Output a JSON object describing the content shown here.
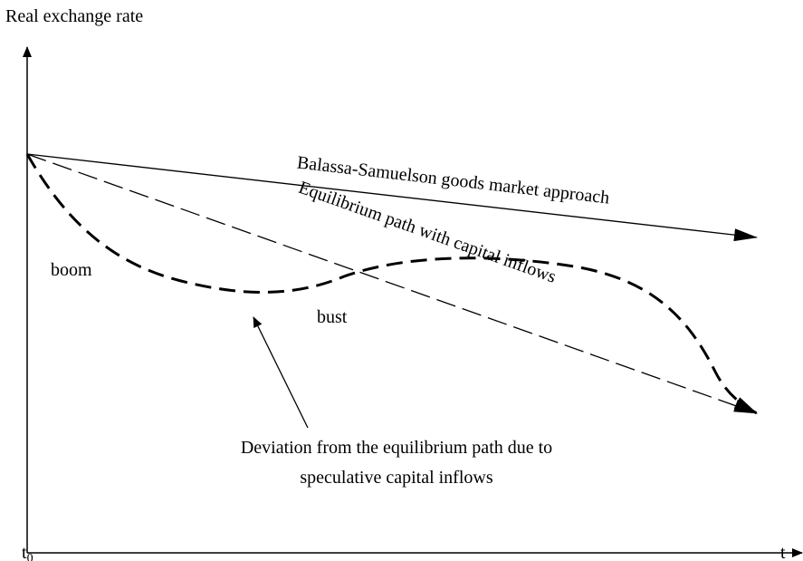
{
  "axes": {
    "y_label": "Real exchange rate",
    "origin_label": "t",
    "origin_subscript": "0",
    "x_label": "t"
  },
  "lines": {
    "balassa": "Balassa-Samuelson goods market approach",
    "equilibrium": "Equilibrium path with capital inflows"
  },
  "annotations": {
    "boom": "boom",
    "bust": "bust",
    "deviation_line1": "Deviation from the equilibrium path due to",
    "deviation_line2": "speculative capital inflows"
  }
}
